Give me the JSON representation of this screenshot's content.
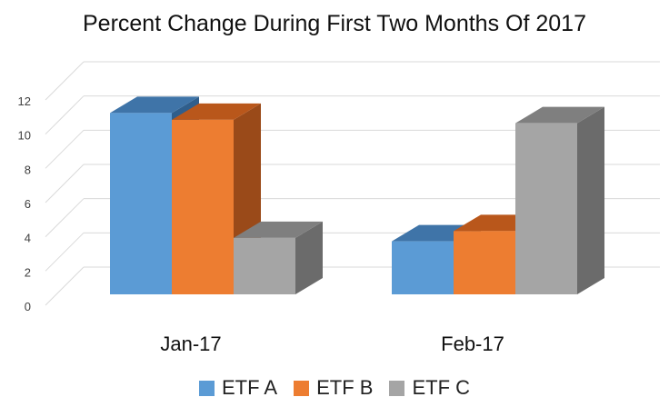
{
  "chart_data": {
    "type": "bar",
    "title": "Percent Change During First Two Months Of 2017",
    "xlabel": "",
    "ylabel": "",
    "categories": [
      "Jan-17",
      "Feb-17"
    ],
    "series": [
      {
        "name": "ETF A",
        "values": [
          10.6,
          3.1
        ]
      },
      {
        "name": "ETF B",
        "values": [
          10.2,
          3.7
        ]
      },
      {
        "name": "ETF C",
        "values": [
          3.3,
          10.0
        ]
      }
    ],
    "ylim": [
      0,
      12
    ],
    "y_ticks": [
      "0",
      "2",
      "4",
      "6",
      "8",
      "10",
      "12"
    ],
    "grid": true,
    "three_d": true,
    "legend_position": "bottom",
    "colors": {
      "ETF A": {
        "front": "#5b9bd5",
        "top": "#3f74a8",
        "side": "#2f5e8c"
      },
      "ETF B": {
        "front": "#ed7d31",
        "top": "#b9571b",
        "side": "#9a4a19"
      },
      "ETF C": {
        "front": "#a5a5a5",
        "top": "#7f7f7f",
        "side": "#6b6b6b"
      }
    }
  }
}
